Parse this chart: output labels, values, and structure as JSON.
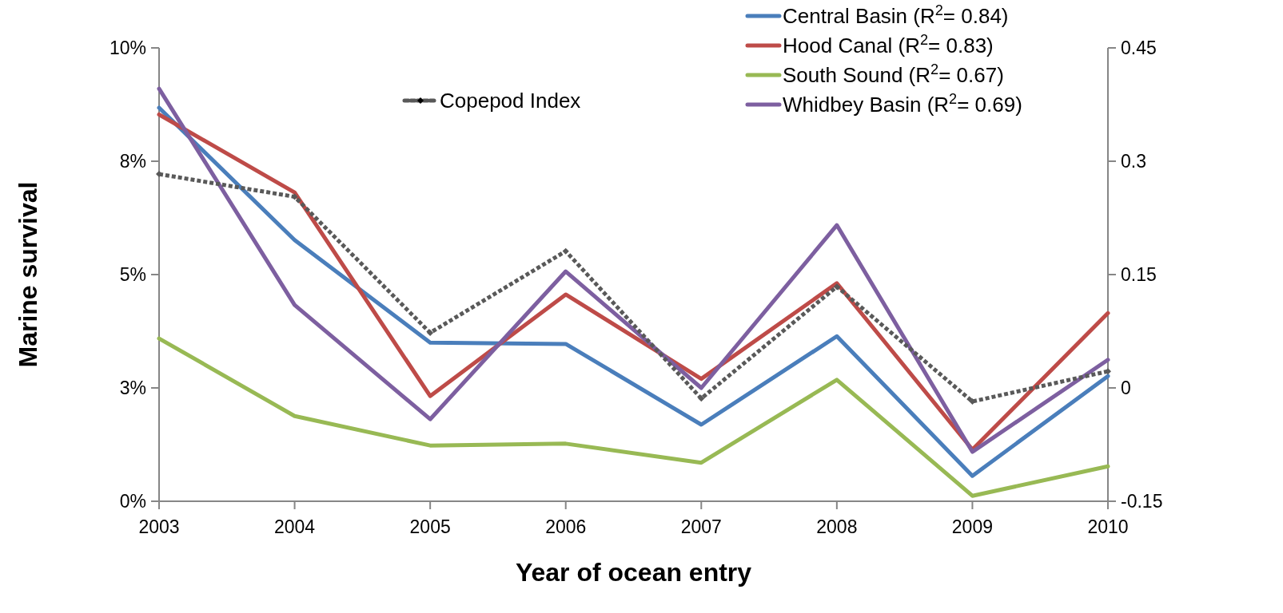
{
  "chart_data": {
    "type": "line",
    "xlabel": "Year of ocean entry",
    "ylabel": "Marine survival",
    "categories": [
      "2003",
      "2004",
      "2005",
      "2006",
      "2007",
      "2008",
      "2009",
      "2010"
    ],
    "ylim": [
      0,
      10
    ],
    "yticks": [
      {
        "value": 0,
        "label": "0%"
      },
      {
        "value": 2.5,
        "label": "3%"
      },
      {
        "value": 5,
        "label": "5%"
      },
      {
        "value": 7.5,
        "label": "8%"
      },
      {
        "value": 10,
        "label": "10%"
      }
    ],
    "y2lim": [
      -0.15,
      0.45
    ],
    "y2ticks": [
      -0.15,
      0,
      0.15,
      0.3,
      0.45
    ],
    "grid": false,
    "legend": "top right",
    "series": [
      {
        "name": "Central Basin (R$^{2}$= 0.84)",
        "color": "#4a7ebb",
        "values": [
          8.68,
          5.76,
          3.5,
          3.47,
          1.69,
          3.64,
          0.56,
          2.76
        ]
      },
      {
        "name": "Hood Canal (R$^{2}$= 0.83)",
        "color": "#be4b48",
        "values": [
          8.53,
          6.81,
          2.32,
          4.56,
          2.7,
          4.81,
          1.14,
          4.15
        ]
      },
      {
        "name": "South Sound (R$^{2}$= 0.67)",
        "color": "#98b954",
        "values": [
          3.59,
          1.88,
          1.23,
          1.27,
          0.85,
          2.68,
          0.12,
          0.77
        ]
      },
      {
        "name": "Whidbey Basin (R$^{2}$= 0.69)",
        "color": "#7d5fa0",
        "values": [
          9.1,
          4.33,
          1.81,
          5.07,
          2.5,
          6.09,
          1.09,
          3.12
        ]
      },
      {
        "name": "Copepod Index",
        "color": "#595959",
        "axis": "y2",
        "marker": "diamond",
        "line_style": "dotted",
        "values": [
          0.283,
          0.253,
          0.073,
          0.181,
          -0.014,
          0.134,
          -0.018,
          0.022
        ]
      }
    ]
  }
}
